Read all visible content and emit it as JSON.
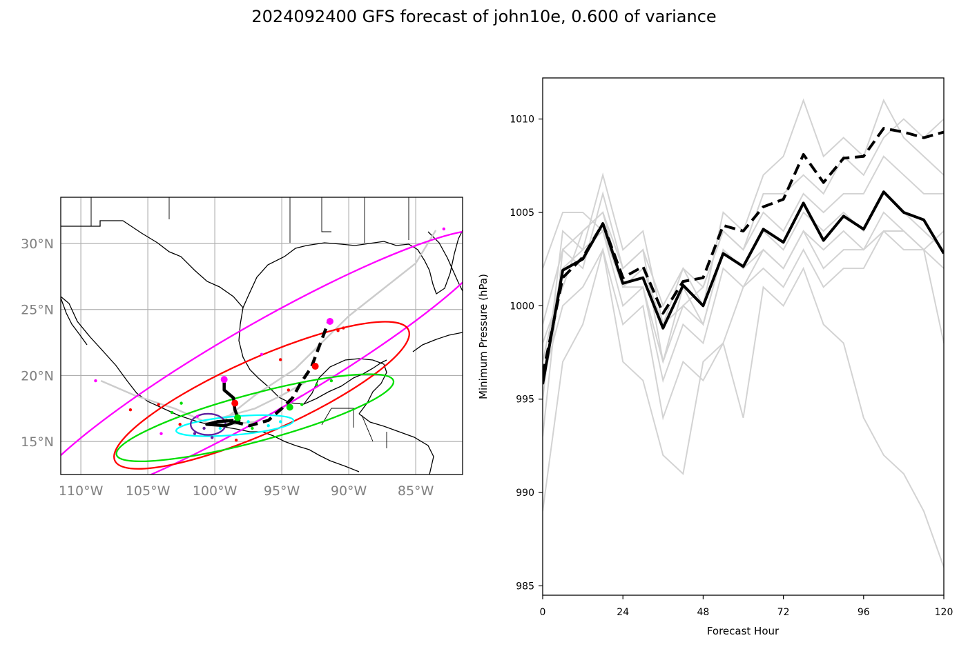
{
  "title": "2024092400 GFS forecast of john10e, 0.600 of variance",
  "chart_data": [
    {
      "type": "map",
      "lon_range": [
        -111.5,
        -81.5
      ],
      "lat_range": [
        12.5,
        33.5
      ],
      "lon_ticks": [
        "110°W",
        "105°W",
        "100°W",
        "95°W",
        "90°W",
        "85°W"
      ],
      "lon_tick_values": [
        -110,
        -105,
        -100,
        -95,
        -90,
        -85
      ],
      "lat_ticks": [
        "15°N",
        "20°N",
        "25°N",
        "30°N"
      ],
      "lat_tick_values": [
        15,
        20,
        25,
        30
      ],
      "grid": true,
      "ellipses": [
        {
          "color": "#ff00ff",
          "center": [
            -96.5,
            20.5
          ],
          "rx_deg": 20.0,
          "ry_deg": 3.3,
          "angle_deg": -30
        },
        {
          "color": "#ff0000",
          "center": [
            -96.5,
            18.5
          ],
          "rx_deg": 12.0,
          "ry_deg": 2.8,
          "angle_deg": -24
        },
        {
          "color": "#00dd00",
          "center": [
            -97.0,
            16.8
          ],
          "rx_deg": 10.7,
          "ry_deg": 1.8,
          "angle_deg": -15
        },
        {
          "color": "#00ffff",
          "center": [
            -98.5,
            16.2
          ],
          "rx_deg": 4.4,
          "ry_deg": 0.7,
          "angle_deg": -5
        },
        {
          "color": "#6020a0",
          "center": [
            -100.5,
            16.3
          ],
          "rx_deg": 1.3,
          "ry_deg": 0.8,
          "angle_deg": 0
        }
      ],
      "track_solid": [
        [
          -98.6,
          16.6
        ],
        [
          -99.8,
          16.5
        ],
        [
          -100.6,
          16.3
        ],
        [
          -99.2,
          16.2
        ],
        [
          -98.2,
          16.6
        ],
        [
          -98.5,
          17.4
        ],
        [
          -98.6,
          18.3
        ],
        [
          -99.3,
          18.9
        ],
        [
          -99.3,
          19.6
        ]
      ],
      "track_dashed": [
        [
          -98.6,
          16.5
        ],
        [
          -97.4,
          16.2
        ],
        [
          -96.0,
          16.6
        ],
        [
          -95.0,
          17.5
        ],
        [
          -94.2,
          18.3
        ],
        [
          -93.6,
          19.4
        ],
        [
          -92.8,
          20.6
        ],
        [
          -91.5,
          24.1
        ]
      ],
      "track_markers": [
        {
          "lon": -99.3,
          "lat": 19.7,
          "color": "#ff00ff"
        },
        {
          "lon": -98.5,
          "lat": 17.9,
          "color": "#ff0000"
        },
        {
          "lon": -98.3,
          "lat": 16.8,
          "color": "#00dd00"
        },
        {
          "lon": -94.4,
          "lat": 17.6,
          "color": "#00dd00"
        },
        {
          "lon": -92.5,
          "lat": 20.7,
          "color": "#ff0000"
        },
        {
          "lon": -91.4,
          "lat": 24.1,
          "color": "#ff00ff"
        }
      ],
      "member_tracks": [
        [
          [
            -100.5,
            16.4
          ],
          [
            -103,
            17.5
          ],
          [
            -106,
            18.5
          ],
          [
            -108.5,
            19.6
          ]
        ],
        [
          [
            -99.5,
            16.5
          ],
          [
            -97,
            18.5
          ],
          [
            -94,
            20.5
          ],
          [
            -90,
            24.5
          ],
          [
            -85,
            28.5
          ],
          [
            -83.5,
            31.0
          ]
        ],
        [
          [
            -99.5,
            16.8
          ],
          [
            -97,
            17.5
          ],
          [
            -95,
            18.5
          ],
          [
            -93.2,
            19.5
          ]
        ],
        [
          [
            -99.5,
            16.2
          ],
          [
            -97,
            16.5
          ],
          [
            -95,
            17.5
          ],
          [
            -93.5,
            18.5
          ]
        ]
      ],
      "member_dots": [
        {
          "lon": -108.9,
          "lat": 19.6,
          "color": "#ff00ff"
        },
        {
          "lon": -106.3,
          "lat": 17.4,
          "color": "#ff0000"
        },
        {
          "lon": -104.2,
          "lat": 17.8,
          "color": "#ff0000"
        },
        {
          "lon": -103.2,
          "lat": 17.2,
          "color": "#00dd00"
        },
        {
          "lon": -102.5,
          "lat": 17.9,
          "color": "#00dd00"
        },
        {
          "lon": -104.0,
          "lat": 15.6,
          "color": "#ff00ff"
        },
        {
          "lon": -102.6,
          "lat": 16.3,
          "color": "#ff0000"
        },
        {
          "lon": -101.3,
          "lat": 16.9,
          "color": "#ff00ff"
        },
        {
          "lon": -96.5,
          "lat": 21.6,
          "color": "#ff00ff"
        },
        {
          "lon": -95.1,
          "lat": 21.2,
          "color": "#ff0000"
        },
        {
          "lon": -94.5,
          "lat": 18.9,
          "color": "#ff0000"
        },
        {
          "lon": -93.5,
          "lat": 17.8,
          "color": "#00dd00"
        },
        {
          "lon": -92.4,
          "lat": 19.3,
          "color": "#00dd00"
        },
        {
          "lon": -91.3,
          "lat": 19.6,
          "color": "#00dd00"
        },
        {
          "lon": -90.8,
          "lat": 23.4,
          "color": "#ff0000"
        },
        {
          "lon": -90.4,
          "lat": 23.6,
          "color": "#ff0000"
        },
        {
          "lon": -82.9,
          "lat": 31.1,
          "color": "#ff00ff"
        },
        {
          "lon": -98.4,
          "lat": 15.1,
          "color": "#ff0000"
        },
        {
          "lon": -99.6,
          "lat": 16.0,
          "color": "#00ffff"
        },
        {
          "lon": -100.8,
          "lat": 16.0,
          "color": "#6020a0"
        },
        {
          "lon": -101.5,
          "lat": 15.6,
          "color": "#6020a0"
        },
        {
          "lon": -100.2,
          "lat": 15.3,
          "color": "#6020a0"
        },
        {
          "lon": -97.5,
          "lat": 16.5,
          "color": "#00ffff"
        },
        {
          "lon": -96.0,
          "lat": 16.2,
          "color": "#00ffff"
        },
        {
          "lon": -95.1,
          "lat": 16.5,
          "color": "#00ffff"
        },
        {
          "lon": -99.1,
          "lat": 16.6,
          "color": "#00dd00"
        },
        {
          "lon": -97.2,
          "lat": 16.0,
          "color": "#00dd00"
        }
      ]
    },
    {
      "type": "line",
      "xlabel": "Forecast Hour",
      "ylabel": "Minimum Pressure (hPa)",
      "xlim": [
        0,
        120
      ],
      "ylim": [
        984.5,
        1012.2
      ],
      "x_ticks": [
        0,
        24,
        48,
        72,
        96,
        120
      ],
      "y_ticks": [
        985,
        990,
        995,
        1000,
        1005,
        1010
      ],
      "x": [
        0,
        6,
        12,
        18,
        24,
        30,
        36,
        42,
        48,
        54,
        60,
        66,
        72,
        78,
        84,
        90,
        96,
        102,
        108,
        114,
        120
      ],
      "series": [
        {
          "style": "solid",
          "color": "#000000",
          "values": [
            995.8,
            1001.9,
            1002.5,
            1004.4,
            1001.2,
            1001.5,
            998.8,
            1001.1,
            1000.0,
            1002.8,
            1002.1,
            1004.1,
            1003.4,
            1005.5,
            1003.5,
            1004.8,
            1004.1,
            1006.1,
            1005.0,
            1004.6,
            1002.8
          ]
        },
        {
          "style": "dashed",
          "color": "#000000",
          "values": [
            996.3,
            1001.5,
            1002.6,
            1004.4,
            1001.5,
            1002.1,
            999.6,
            1001.3,
            1001.5,
            1004.3,
            1004.0,
            1005.3,
            1005.7,
            1008.1,
            1006.6,
            1007.9,
            1008.0,
            1009.5,
            1009.3,
            1009.0,
            1009.3
          ]
        }
      ],
      "members": [
        [
          993.0,
          1003.0,
          1002.0,
          1006.0,
          1002.0,
          1003.0,
          997.0,
          1001.0,
          999.0,
          1003.0,
          1002.0,
          1004.0,
          1003.0,
          1005.0,
          1004.0,
          1005.0,
          1004.0,
          1006.0,
          1005.0,
          1004.0,
          1003.0
        ],
        [
          998.0,
          1001.0,
          1004.0,
          1005.0,
          1001.0,
          1002.0,
          999.0,
          1000.0,
          1001.0,
          1004.0,
          1003.0,
          1006.0,
          1006.0,
          1007.0,
          1006.0,
          1008.0,
          1007.0,
          1009.0,
          1010.0,
          1009.0,
          1010.0
        ],
        [
          1002.0,
          1005.0,
          1005.0,
          1004.0,
          1000.0,
          1001.0,
          996.0,
          999.0,
          998.0,
          1002.0,
          1001.0,
          1003.0,
          1002.0,
          1004.0,
          1002.0,
          1003.0,
          1003.0,
          1005.0,
          1004.0,
          1003.0,
          1002.0
        ],
        [
          989.0,
          997.0,
          999.0,
          1003.0,
          999.0,
          1000.0,
          994.0,
          997.0,
          996.0,
          998.0,
          994.0,
          1001.0,
          1000.0,
          1002.0,
          999.0,
          998.0,
          994.0,
          992.0,
          991.0,
          989.0,
          986.0
        ],
        [
          995.0,
          1004.0,
          1003.0,
          1007.0,
          1003.0,
          1004.0,
          999.0,
          1002.0,
          1000.0,
          1005.0,
          1004.0,
          1007.0,
          1008.0,
          1011.0,
          1008.0,
          1009.0,
          1008.0,
          1011.0,
          1009.0,
          1008.0,
          1007.0
        ],
        [
          997.0,
          1002.0,
          1003.0,
          1004.0,
          1001.0,
          1001.0,
          997.0,
          1000.0,
          999.0,
          1003.0,
          1002.0,
          1003.0,
          1002.0,
          1004.0,
          1003.0,
          1004.0,
          1003.0,
          1004.0,
          1003.0,
          1003.0,
          1004.0
        ],
        [
          996.0,
          1000.0,
          1001.0,
          1003.0,
          997.0,
          996.0,
          992.0,
          991.0,
          997.0,
          998.0,
          1001.0,
          1002.0,
          1001.0,
          1003.0,
          1001.0,
          1002.0,
          1002.0,
          1004.0,
          1004.0,
          1003.0,
          998.0
        ],
        [
          999.0,
          1003.0,
          1004.0,
          1005.0,
          1002.0,
          1003.0,
          1000.0,
          1002.0,
          1001.0,
          1004.0,
          1003.0,
          1005.0,
          1004.0,
          1006.0,
          1005.0,
          1006.0,
          1006.0,
          1008.0,
          1007.0,
          1006.0,
          1006.0
        ]
      ]
    }
  ]
}
